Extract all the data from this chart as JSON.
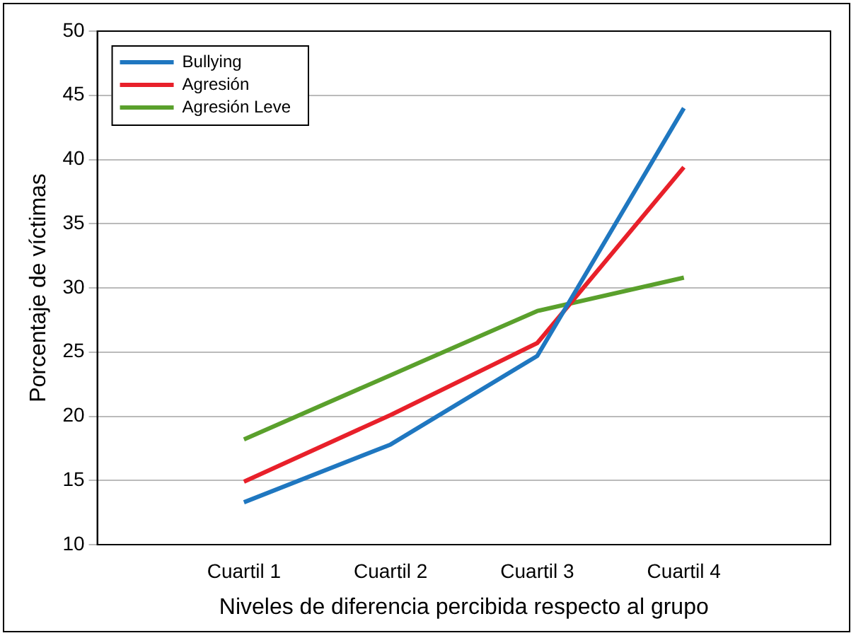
{
  "chart_data": {
    "type": "line",
    "xlabel": "Niveles de diferencia percibida respecto al grupo",
    "ylabel": "Porcentaje de víctimas",
    "categories": [
      "Cuartil 1",
      "Cuartil 2",
      "Cuartil 3",
      "Cuartil 4"
    ],
    "series": [
      {
        "name": "Bullying",
        "color": "#1f77c0",
        "values": [
          13.3,
          17.8,
          24.7,
          44.0
        ]
      },
      {
        "name": "Agresión",
        "color": "#e8202a",
        "values": [
          14.9,
          20.1,
          25.7,
          39.4
        ]
      },
      {
        "name": "Agresión Leve",
        "color": "#5aa02c",
        "values": [
          18.2,
          23.2,
          28.2,
          30.8
        ]
      }
    ],
    "ylim": [
      10,
      50
    ],
    "yticks": [
      10,
      15,
      20,
      25,
      30,
      35,
      40,
      45,
      50
    ],
    "grid": "y",
    "legend": "top left",
    "marker": "none",
    "line_style": "solid"
  }
}
